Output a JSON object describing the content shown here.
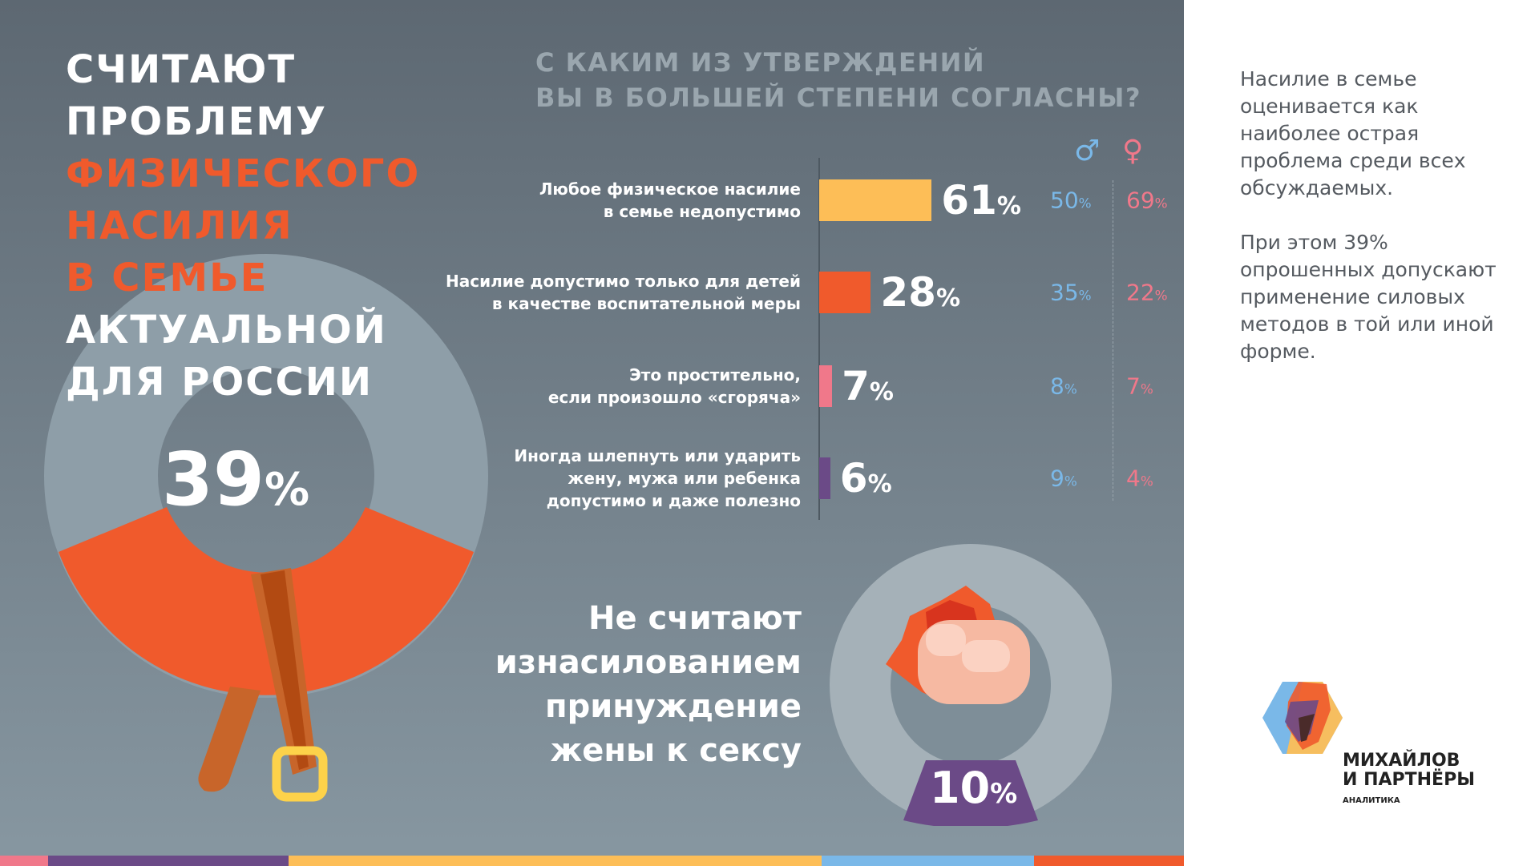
{
  "headline": {
    "lines": [
      "СЧИТАЮТ",
      "ПРОБЛЕМУ",
      "ФИЗИЧЕСКОГО",
      "НАСИЛИЯ",
      "В СЕМЬЕ",
      "АКТУАЛЬНОЙ",
      "ДЛЯ РОССИИ"
    ],
    "value": "39",
    "unit": "%"
  },
  "question": {
    "line1": "С КАКИМ ИЗ УТВЕРЖДЕНИЙ",
    "line2": "ВЫ В БОЛЬШЕЙ СТЕПЕНИ СОГЛАСНЫ?"
  },
  "gender_icons": {
    "male": "♂",
    "female": "♀"
  },
  "rows": [
    {
      "l1": "Любое физическое насилие",
      "l2": "в семье недопустимо",
      "l3": "",
      "value": 61,
      "total": "61",
      "male": "50",
      "female": "69",
      "color": "#fdbe57"
    },
    {
      "l1": "Насилие допустимо только для детей",
      "l2": "в качестве воспитательной меры",
      "l3": "",
      "value": 28,
      "total": "28",
      "male": "35",
      "female": "22",
      "color": "#f05a2c"
    },
    {
      "l1": "Это простительно,",
      "l2": "если произошло «сгоряча»",
      "l3": "",
      "value": 7,
      "total": "7",
      "male": "8",
      "female": "7",
      "color": "#f0788a"
    },
    {
      "l1": "Иногда шлепнуть или ударить",
      "l2": "жену, мужа или ребенка",
      "l3": "допустимо и даже полезно",
      "value": 6,
      "total": "6",
      "male": "9",
      "female": "4",
      "color": "#6b4a87"
    }
  ],
  "percent_sign": "%",
  "rape": {
    "lines": [
      "Не считают",
      "изнасилованием",
      "принуждение",
      "жены к сексу"
    ],
    "value": "10",
    "unit": "%"
  },
  "note": {
    "p1": "Насилие в семье оценивается как наиболее острая проблема среди всех обсуждаемых.",
    "p2": "При этом 39% опрошенных допускают применение силовых методов в той или иной форме."
  },
  "logo": {
    "line1": "МИХАЙЛОВ",
    "line2": "И ПАРТНЁРЫ",
    "sub": "АНАЛИТИКА"
  }
}
